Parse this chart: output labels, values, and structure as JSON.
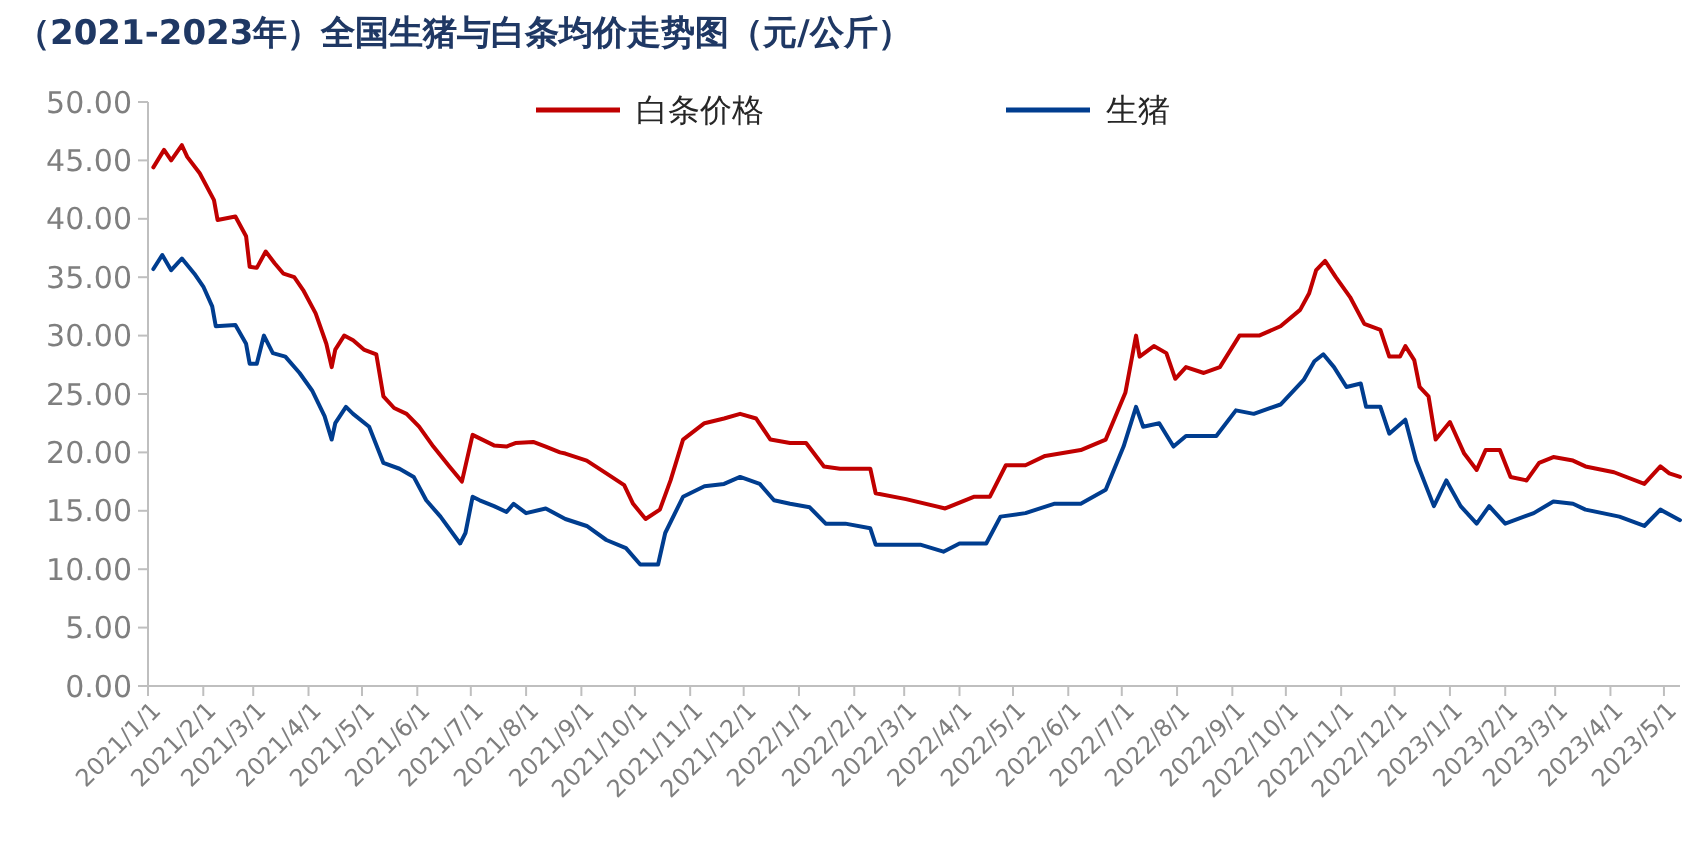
{
  "chart_data": {
    "type": "line",
    "title": "（2021-2023年）全国生猪与白条均价走势图（元/公斤）",
    "xlim": [
      "2021-01-01",
      "2023-05-10"
    ],
    "xticks": [
      {
        "value": "2021-01-01",
        "label": "2021/1/1"
      },
      {
        "value": "2021-02-01",
        "label": "2021/2/1"
      },
      {
        "value": "2021-03-01",
        "label": "2021/3/1"
      },
      {
        "value": "2021-04-01",
        "label": "2021/4/1"
      },
      {
        "value": "2021-05-01",
        "label": "2021/5/1"
      },
      {
        "value": "2021-06-01",
        "label": "2021/6/1"
      },
      {
        "value": "2021-07-01",
        "label": "2021/7/1"
      },
      {
        "value": "2021-08-01",
        "label": "2021/8/1"
      },
      {
        "value": "2021-09-01",
        "label": "2021/9/1"
      },
      {
        "value": "2021-10-01",
        "label": "2021/10/1"
      },
      {
        "value": "2021-11-01",
        "label": "2021/11/1"
      },
      {
        "value": "2021-12-01",
        "label": "2021/12/1"
      },
      {
        "value": "2022-01-01",
        "label": "2022/1/1"
      },
      {
        "value": "2022-02-01",
        "label": "2022/2/1"
      },
      {
        "value": "2022-03-01",
        "label": "2022/3/1"
      },
      {
        "value": "2022-04-01",
        "label": "2022/4/1"
      },
      {
        "value": "2022-05-01",
        "label": "2022/5/1"
      },
      {
        "value": "2022-06-01",
        "label": "2022/6/1"
      },
      {
        "value": "2022-07-01",
        "label": "2022/7/1"
      },
      {
        "value": "2022-08-01",
        "label": "2022/8/1"
      },
      {
        "value": "2022-09-01",
        "label": "2022/9/1"
      },
      {
        "value": "2022-10-01",
        "label": "2022/10/1"
      },
      {
        "value": "2022-11-01",
        "label": "2022/11/1"
      },
      {
        "value": "2022-12-01",
        "label": "2022/12/1"
      },
      {
        "value": "2023-01-01",
        "label": "2023/1/1"
      },
      {
        "value": "2023-02-01",
        "label": "2023/2/1"
      },
      {
        "value": "2023-03-01",
        "label": "2023/3/1"
      },
      {
        "value": "2023-04-01",
        "label": "2023/4/1"
      },
      {
        "value": "2023-05-01",
        "label": "2023/5/1"
      }
    ],
    "ylim": [
      0,
      50
    ],
    "yticks": [
      {
        "value": 0,
        "label": "0.00"
      },
      {
        "value": 5,
        "label": "5.00"
      },
      {
        "value": 10,
        "label": "10.00"
      },
      {
        "value": 15,
        "label": "15.00"
      },
      {
        "value": 20,
        "label": "20.00"
      },
      {
        "value": 25,
        "label": "25.00"
      },
      {
        "value": 30,
        "label": "30.00"
      },
      {
        "value": 35,
        "label": "35.00"
      },
      {
        "value": 40,
        "label": "40.00"
      },
      {
        "value": 45,
        "label": "45.00"
      },
      {
        "value": 50,
        "label": "50.00"
      }
    ],
    "grid": false,
    "legend": "top",
    "marker": "none",
    "line_style": "solid",
    "series": [
      {
        "name": "白条价格",
        "color": "#c00000",
        "x": [
          "2021-01-04",
          "2021-01-10",
          "2021-01-14",
          "2021-01-20",
          "2021-01-23",
          "2021-01-30",
          "2021-02-07",
          "2021-02-09",
          "2021-02-19",
          "2021-02-25",
          "2021-02-27",
          "2021-03-03",
          "2021-03-08",
          "2021-03-13",
          "2021-03-18",
          "2021-03-24",
          "2021-03-29",
          "2021-04-05",
          "2021-04-11",
          "2021-04-14",
          "2021-04-16",
          "2021-04-21",
          "2021-04-26",
          "2021-05-02",
          "2021-05-09",
          "2021-05-13",
          "2021-05-19",
          "2021-05-26",
          "2021-06-02",
          "2021-06-10",
          "2021-06-19",
          "2021-06-26",
          "2021-07-02",
          "2021-07-06",
          "2021-07-14",
          "2021-07-21",
          "2021-07-26",
          "2021-08-05",
          "2021-08-12",
          "2021-08-20",
          "2021-08-23",
          "2021-09-04",
          "2021-09-15",
          "2021-09-25",
          "2021-09-30",
          "2021-10-07",
          "2021-10-15",
          "2021-10-21",
          "2021-10-28",
          "2021-11-09",
          "2021-11-20",
          "2021-11-29",
          "2021-12-08",
          "2021-12-16",
          "2021-12-27",
          "2022-01-05",
          "2022-01-15",
          "2022-01-24",
          "2022-02-10",
          "2022-02-13",
          "2022-03-02",
          "2022-03-24",
          "2022-04-09",
          "2022-04-18",
          "2022-04-27",
          "2022-05-08",
          "2022-05-19",
          "2022-06-08",
          "2022-06-22",
          "2022-07-03",
          "2022-07-09",
          "2022-07-11",
          "2022-07-19",
          "2022-07-26",
          "2022-07-31",
          "2022-08-06",
          "2022-08-16",
          "2022-08-25",
          "2022-09-05",
          "2022-09-16",
          "2022-09-28",
          "2022-10-09",
          "2022-10-14",
          "2022-10-18",
          "2022-10-23",
          "2022-10-29",
          "2022-11-06",
          "2022-11-14",
          "2022-11-23",
          "2022-11-28",
          "2022-12-04",
          "2022-12-07",
          "2022-12-12",
          "2022-12-15",
          "2022-12-20",
          "2022-12-24",
          "2023-01-01",
          "2023-01-09",
          "2023-01-16",
          "2023-01-21",
          "2023-01-29",
          "2023-02-04",
          "2023-02-13",
          "2023-02-20",
          "2023-02-28",
          "2023-03-11",
          "2023-03-18",
          "2023-04-03",
          "2023-04-20",
          "2023-04-29",
          "2023-05-04",
          "2023-05-10"
        ],
        "values": [
          44.4,
          45.9,
          45.0,
          46.3,
          45.3,
          43.9,
          41.6,
          39.9,
          40.2,
          38.5,
          35.9,
          35.8,
          37.2,
          36.2,
          35.3,
          35.0,
          33.9,
          31.9,
          29.3,
          27.3,
          28.8,
          30.0,
          29.6,
          28.8,
          28.4,
          24.8,
          23.8,
          23.3,
          22.2,
          20.5,
          18.8,
          17.5,
          21.5,
          21.2,
          20.6,
          20.5,
          20.8,
          20.9,
          20.5,
          20.0,
          19.9,
          19.3,
          18.2,
          17.2,
          15.6,
          14.3,
          15.1,
          17.6,
          21.1,
          22.5,
          22.9,
          23.3,
          22.9,
          21.1,
          20.8,
          20.8,
          18.8,
          18.6,
          18.6,
          16.5,
          16.0,
          15.2,
          16.2,
          16.2,
          18.9,
          18.9,
          19.7,
          20.2,
          21.1,
          25.1,
          30.0,
          28.2,
          29.1,
          28.5,
          26.3,
          27.3,
          26.8,
          27.3,
          30.0,
          30.0,
          30.8,
          32.2,
          33.6,
          35.6,
          36.4,
          35.0,
          33.3,
          31.0,
          30.5,
          28.2,
          28.2,
          29.1,
          27.9,
          25.6,
          24.8,
          21.1,
          22.6,
          19.9,
          18.5,
          20.2,
          20.2,
          17.9,
          17.6,
          19.1,
          19.6,
          19.3,
          18.8,
          18.3,
          17.3,
          18.8,
          18.2,
          17.9
        ]
      },
      {
        "name": "生猪",
        "color": "#003d8f",
        "x": [
          "2021-01-04",
          "2021-01-09",
          "2021-01-14",
          "2021-01-20",
          "2021-01-27",
          "2021-02-01",
          "2021-02-06",
          "2021-02-08",
          "2021-02-19",
          "2021-02-25",
          "2021-02-27",
          "2021-03-03",
          "2021-03-07",
          "2021-03-12",
          "2021-03-19",
          "2021-03-27",
          "2021-04-03",
          "2021-04-10",
          "2021-04-14",
          "2021-04-16",
          "2021-04-22",
          "2021-04-26",
          "2021-05-05",
          "2021-05-13",
          "2021-05-22",
          "2021-05-30",
          "2021-06-06",
          "2021-06-14",
          "2021-06-25",
          "2021-06-28",
          "2021-07-02",
          "2021-07-06",
          "2021-07-14",
          "2021-07-21",
          "2021-07-25",
          "2021-08-01",
          "2021-08-12",
          "2021-08-23",
          "2021-09-04",
          "2021-09-15",
          "2021-09-26",
          "2021-10-04",
          "2021-10-14",
          "2021-10-18",
          "2021-10-28",
          "2021-11-09",
          "2021-11-20",
          "2021-11-29",
          "2021-12-10",
          "2021-12-18",
          "2021-12-27",
          "2022-01-07",
          "2022-01-16",
          "2022-01-27",
          "2022-02-10",
          "2022-02-13",
          "2022-03-10",
          "2022-03-23",
          "2022-04-01",
          "2022-04-16",
          "2022-04-24",
          "2022-05-08",
          "2022-05-24",
          "2022-06-08",
          "2022-06-22",
          "2022-07-02",
          "2022-07-09",
          "2022-07-13",
          "2022-07-22",
          "2022-07-30",
          "2022-08-06",
          "2022-08-23",
          "2022-09-03",
          "2022-09-13",
          "2022-09-28",
          "2022-10-11",
          "2022-10-17",
          "2022-10-22",
          "2022-10-28",
          "2022-11-04",
          "2022-11-12",
          "2022-11-15",
          "2022-11-23",
          "2022-11-28",
          "2022-12-07",
          "2022-12-13",
          "2022-12-23",
          "2022-12-30",
          "2023-01-07",
          "2023-01-16",
          "2023-01-23",
          "2023-02-01",
          "2023-02-17",
          "2023-02-28",
          "2023-03-11",
          "2023-03-18",
          "2023-04-06",
          "2023-04-20",
          "2023-04-29",
          "2023-05-10"
        ],
        "values": [
          35.7,
          36.9,
          35.6,
          36.6,
          35.3,
          34.2,
          32.5,
          30.8,
          30.9,
          29.3,
          27.6,
          27.6,
          30.0,
          28.5,
          28.2,
          26.8,
          25.3,
          23.1,
          21.1,
          22.5,
          23.9,
          23.3,
          22.2,
          19.1,
          18.6,
          17.9,
          15.9,
          14.5,
          12.2,
          13.1,
          16.2,
          15.9,
          15.4,
          14.9,
          15.6,
          14.8,
          15.2,
          14.3,
          13.7,
          12.5,
          11.8,
          10.4,
          10.4,
          13.1,
          16.2,
          17.1,
          17.3,
          17.9,
          17.3,
          15.9,
          15.6,
          15.3,
          13.9,
          13.9,
          13.5,
          12.1,
          12.1,
          11.5,
          12.2,
          12.2,
          14.5,
          14.8,
          15.6,
          15.6,
          16.8,
          20.5,
          23.9,
          22.2,
          22.5,
          20.5,
          21.4,
          21.4,
          23.6,
          23.3,
          24.1,
          26.2,
          27.8,
          28.4,
          27.3,
          25.6,
          25.9,
          23.9,
          23.9,
          21.6,
          22.8,
          19.3,
          15.4,
          17.6,
          15.4,
          13.9,
          15.4,
          13.9,
          14.8,
          15.8,
          15.6,
          15.1,
          14.5,
          13.7,
          15.1,
          14.2
        ]
      }
    ]
  }
}
